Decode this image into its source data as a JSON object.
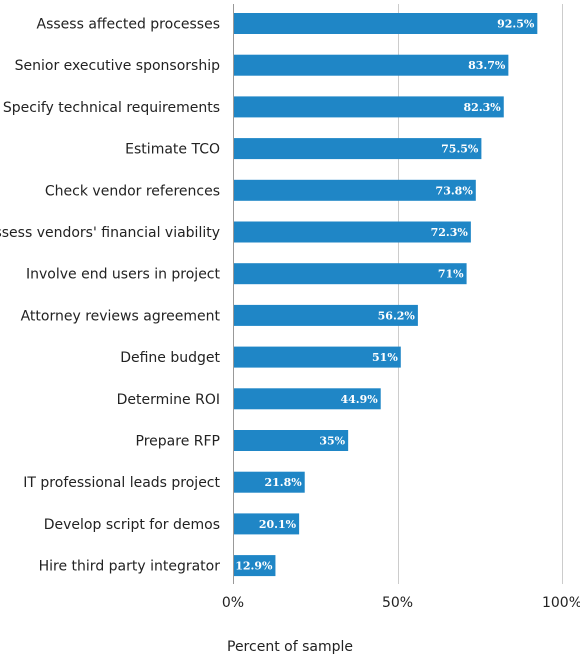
{
  "chart_data": {
    "type": "bar",
    "orientation": "horizontal",
    "categories": [
      "Assess affected processes",
      "Senior executive sponsorship",
      "Specify technical requirements",
      "Estimate TCO",
      "Check vendor references",
      "Assess vendors' financial viability",
      "Involve end users in project",
      "Attorney reviews agreement",
      "Define budget",
      "Determine ROI",
      "Prepare RFP",
      "IT professional leads project",
      "Develop script for demos",
      "Hire third party integrator"
    ],
    "values": [
      92.5,
      83.7,
      82.3,
      75.5,
      73.8,
      72.3,
      71,
      56.2,
      51,
      44.9,
      35,
      21.8,
      20.1,
      12.9
    ],
    "data_labels": [
      "92.5%",
      "83.7%",
      "82.3%",
      "75.5%",
      "73.8%",
      "72.3%",
      "71%",
      "56.2%",
      "51%",
      "44.9%",
      "35%",
      "21.8%",
      "20.1%",
      "12.9%"
    ],
    "xlabel": "Percent of sample",
    "xlim": [
      0,
      100
    ],
    "xticks": [
      0,
      50,
      100
    ],
    "xtick_labels": [
      "0%",
      "50%",
      "100%"
    ],
    "grid": true,
    "bar_color": "#1f86c6"
  }
}
